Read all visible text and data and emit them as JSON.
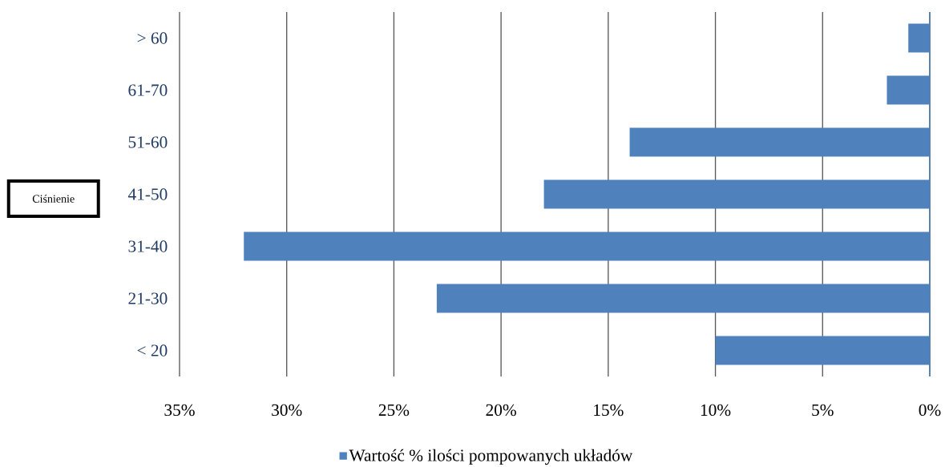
{
  "chart_data": {
    "type": "bar",
    "orientation": "horizontal",
    "ylabel": "Ciśnienie",
    "categories": [
      "> 60",
      "61-70",
      "51-60",
      "41-50",
      "31-40",
      "21-30",
      "< 20"
    ],
    "series": [
      {
        "name": "Wartość % ilości pompowanych układów",
        "color": "#4f81bd",
        "values": [
          1,
          2,
          14,
          18,
          32,
          23,
          10
        ]
      }
    ],
    "xlim": [
      35,
      0
    ],
    "xticks": [
      {
        "value": 35,
        "label": "35%"
      },
      {
        "value": 30,
        "label": "30%"
      },
      {
        "value": 25,
        "label": "25%"
      },
      {
        "value": 20,
        "label": "20%"
      },
      {
        "value": 15,
        "label": "15%"
      },
      {
        "value": 10,
        "label": "10%"
      },
      {
        "value": 5,
        "label": "5%"
      },
      {
        "value": 0,
        "label": "0%"
      }
    ],
    "grid": "x",
    "legend": "bottom"
  }
}
